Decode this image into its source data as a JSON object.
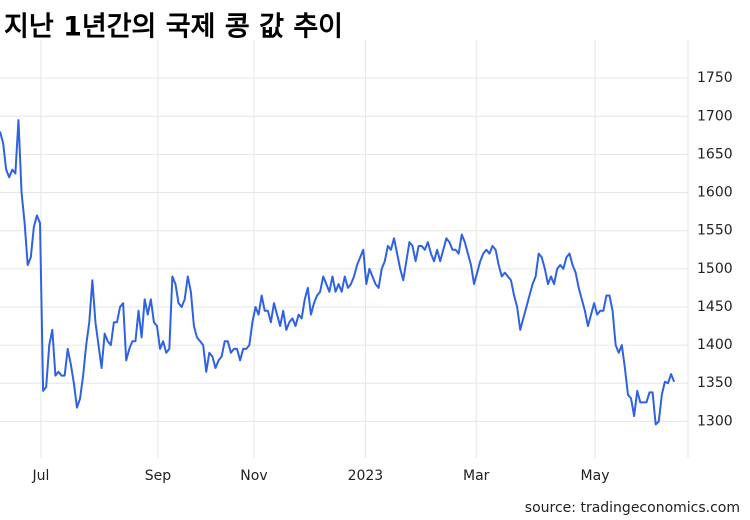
{
  "chart_data": {
    "type": "line",
    "title": "지난 1년간의 국제 콩 값 추이",
    "source": "source: tradingeconomics.com",
    "color": "#2f62e3",
    "grid": true,
    "xlim": [
      0,
      223.5
    ],
    "xticks": [
      {
        "value": 13.3,
        "label": "Jul"
      },
      {
        "value": 51.3,
        "label": "Sep"
      },
      {
        "value": 82.5,
        "label": "Nov"
      },
      {
        "value": 118.7,
        "label": "2023"
      },
      {
        "value": 154.7,
        "label": "Mar"
      },
      {
        "value": 193.3,
        "label": "May"
      }
    ],
    "ylim": [
      1252,
      1800
    ],
    "yticks": [
      1300,
      1350,
      1400,
      1450,
      1500,
      1550,
      1600,
      1650,
      1700,
      1750
    ],
    "values": [
      1680,
      1665,
      1630,
      1620,
      1630,
      1625,
      1695,
      1600,
      1560,
      1505,
      1515,
      1555,
      1570,
      1560,
      1340,
      1345,
      1400,
      1420,
      1360,
      1365,
      1360,
      1360,
      1395,
      1375,
      1350,
      1318,
      1330,
      1360,
      1400,
      1430,
      1485,
      1430,
      1400,
      1370,
      1415,
      1405,
      1400,
      1430,
      1430,
      1450,
      1455,
      1380,
      1395,
      1405,
      1405,
      1445,
      1410,
      1460,
      1440,
      1460,
      1430,
      1425,
      1395,
      1405,
      1390,
      1395,
      1490,
      1480,
      1455,
      1450,
      1460,
      1490,
      1470,
      1425,
      1410,
      1405,
      1400,
      1365,
      1390,
      1385,
      1370,
      1380,
      1385,
      1405,
      1405,
      1390,
      1395,
      1395,
      1380,
      1395,
      1395,
      1400,
      1430,
      1450,
      1440,
      1465,
      1445,
      1445,
      1430,
      1455,
      1440,
      1425,
      1445,
      1420,
      1430,
      1435,
      1425,
      1440,
      1435,
      1460,
      1475,
      1440,
      1455,
      1465,
      1470,
      1490,
      1480,
      1470,
      1490,
      1470,
      1480,
      1470,
      1490,
      1475,
      1480,
      1490,
      1505,
      1515,
      1525,
      1480,
      1500,
      1490,
      1480,
      1475,
      1500,
      1510,
      1530,
      1525,
      1540,
      1520,
      1500,
      1485,
      1510,
      1535,
      1530,
      1510,
      1530,
      1530,
      1525,
      1535,
      1520,
      1510,
      1525,
      1510,
      1525,
      1540,
      1535,
      1525,
      1525,
      1520,
      1545,
      1535,
      1520,
      1505,
      1480,
      1495,
      1510,
      1520,
      1525,
      1520,
      1530,
      1525,
      1505,
      1490,
      1495,
      1490,
      1485,
      1465,
      1450,
      1420,
      1435,
      1450,
      1465,
      1480,
      1490,
      1520,
      1515,
      1500,
      1480,
      1490,
      1480,
      1500,
      1505,
      1500,
      1515,
      1520,
      1505,
      1495,
      1475,
      1460,
      1445,
      1425,
      1440,
      1455,
      1440,
      1445,
      1445,
      1465,
      1465,
      1445,
      1400,
      1390,
      1400,
      1370,
      1335,
      1330,
      1307,
      1340,
      1325,
      1325,
      1325,
      1338,
      1338,
      1296,
      1300,
      1335,
      1352,
      1350,
      1362,
      1352
    ]
  }
}
